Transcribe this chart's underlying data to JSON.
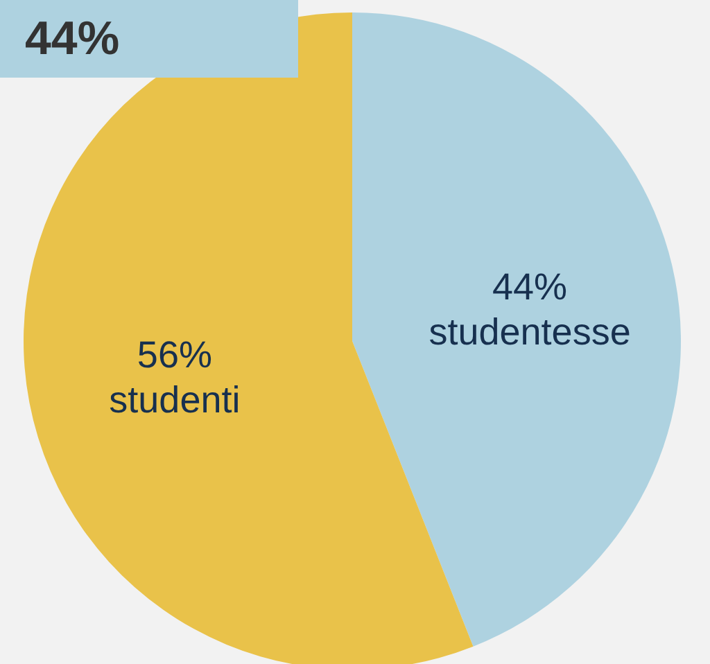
{
  "chart_data": {
    "type": "pie",
    "categories": [
      "studentesse",
      "studenti"
    ],
    "values": [
      44,
      56
    ],
    "colors": [
      "#aed2e0",
      "#e9c24a"
    ],
    "value_labels": [
      "44%",
      "56%"
    ],
    "annotations": [
      "44%"
    ]
  }
}
